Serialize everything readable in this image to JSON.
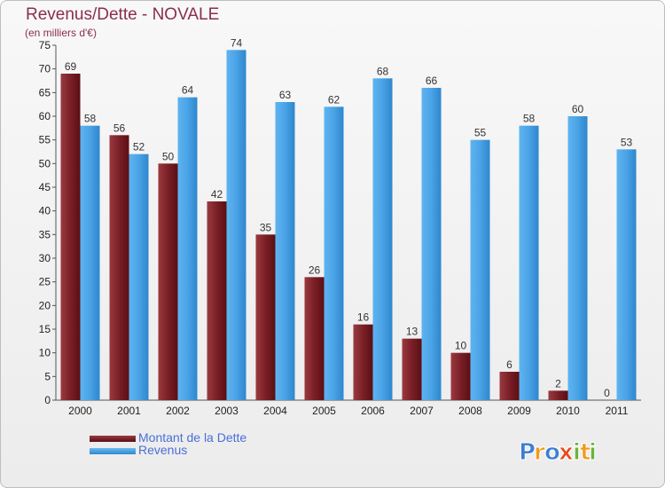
{
  "title": "Revenus/Dette - NOVALE",
  "subtitle": "(en milliers d'€)",
  "colors": {
    "title": "#8b2f4a",
    "dette": "#7a1f26",
    "revenus": "#4aa3e6",
    "legend_text": "#4a6fd6"
  },
  "legend": [
    {
      "label": "Montant de la Dette",
      "color": "#7a1f26"
    },
    {
      "label": "Revenus",
      "color": "#4aa3e6"
    }
  ],
  "logo": {
    "letters": [
      {
        "char": "P",
        "color": "#3a7fd1"
      },
      {
        "char": "r",
        "color": "#f29a1c"
      },
      {
        "char": "o",
        "color": "#3a7fd1"
      },
      {
        "char": "x",
        "color": "#e84a1e"
      },
      {
        "char": "i",
        "color": "#6bb33a"
      },
      {
        "char": "t",
        "color": "#f29a1c"
      },
      {
        "char": "i",
        "color": "#6bb33a"
      }
    ]
  },
  "chart_data": {
    "type": "bar",
    "title": "Revenus/Dette - NOVALE",
    "subtitle": "(en milliers d'€)",
    "categories": [
      "2000",
      "2001",
      "2002",
      "2003",
      "2004",
      "2005",
      "2006",
      "2007",
      "2008",
      "2009",
      "2010",
      "2011"
    ],
    "series": [
      {
        "name": "Montant de la Dette",
        "values": [
          69,
          56,
          50,
          42,
          35,
          26,
          16,
          13,
          10,
          6,
          2,
          0
        ]
      },
      {
        "name": "Revenus",
        "values": [
          58,
          52,
          64,
          74,
          63,
          62,
          68,
          66,
          55,
          58,
          60,
          53
        ]
      }
    ],
    "ylim": [
      0,
      75
    ],
    "yticks": [
      0,
      5,
      10,
      15,
      20,
      25,
      30,
      35,
      40,
      45,
      50,
      55,
      60,
      65,
      70,
      75
    ],
    "grid": false,
    "legend_position": "bottom-left",
    "data_labels": true
  }
}
